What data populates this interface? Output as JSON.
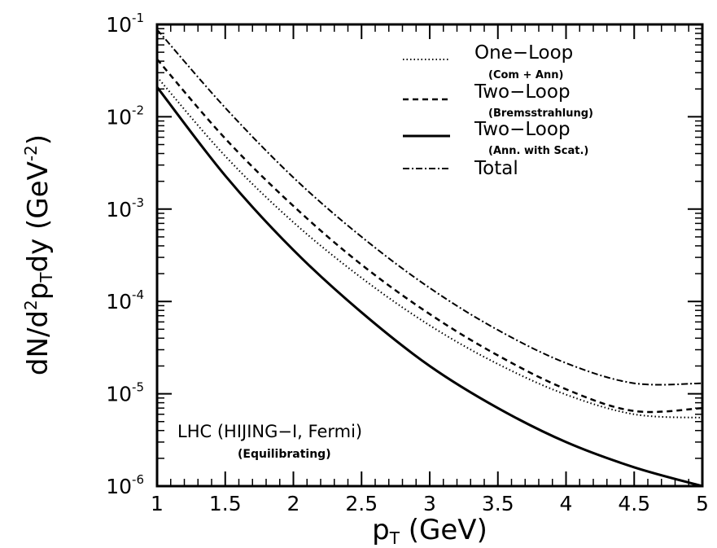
{
  "chart_data": {
    "type": "line",
    "title": "",
    "xlabel": "p_T (GeV)",
    "xlabel_base": "p",
    "xlabel_sub": "T",
    "xlabel_unit": " (GeV)",
    "ylabel": "dN/d²p_T dy (GeV⁻²)",
    "ylabel_parts": {
      "a": "dN/d",
      "b": "2",
      "c": "p",
      "d": "T",
      "e": "dy (GeV",
      "f": "-2",
      "g": ")"
    },
    "x_scale": "linear",
    "y_scale": "log",
    "xlim": [
      1,
      5
    ],
    "ylim": [
      1e-06,
      0.1
    ],
    "x_ticks": [
      "1",
      "1.5",
      "2",
      "2.5",
      "3",
      "3.5",
      "4",
      "4.5",
      "5"
    ],
    "y_ticks": [
      {
        "base": "10",
        "exp": "-6"
      },
      {
        "base": "10",
        "exp": "-5"
      },
      {
        "base": "10",
        "exp": "-4"
      },
      {
        "base": "10",
        "exp": "-3"
      },
      {
        "base": "10",
        "exp": "-2"
      },
      {
        "base": "10",
        "exp": "-1"
      }
    ],
    "grid": false,
    "legend_position": "top-right",
    "series": [
      {
        "name": "One−Loop",
        "note": "(Com + Ann)",
        "line_style": "dotted",
        "x": [
          1,
          1.5,
          2,
          2.5,
          3,
          3.5,
          4,
          4.5,
          5
        ],
        "y": [
          0.027,
          0.00375,
          0.00072,
          0.00018,
          5.5e-05,
          2.1e-05,
          9.8e-06,
          6e-06,
          5.5e-06
        ]
      },
      {
        "name": "Two−Loop",
        "note": "(Bremsstrahlung)",
        "line_style": "dashed",
        "x": [
          1,
          1.5,
          2,
          2.5,
          3,
          3.5,
          4,
          4.5,
          5
        ],
        "y": [
          0.042,
          0.0058,
          0.00108,
          0.00025,
          7.3e-05,
          2.6e-05,
          1.12e-05,
          6.5e-06,
          7e-06
        ]
      },
      {
        "name": "Two−Loop",
        "note": "(Ann. with Scat.)",
        "line_style": "solid",
        "x": [
          1,
          1.5,
          2,
          2.5,
          3,
          3.5,
          4,
          4.5,
          5
        ],
        "y": [
          0.021,
          0.0023,
          0.00036,
          7.6e-05,
          2e-05,
          7e-06,
          3e-06,
          1.6e-06,
          1e-06
        ]
      },
      {
        "name": "Total",
        "note": "",
        "line_style": "dashdot",
        "x": [
          1,
          1.5,
          2,
          2.5,
          3,
          3.5,
          4,
          4.5,
          5
        ],
        "y": [
          0.088,
          0.0125,
          0.0022,
          0.0005,
          0.00014,
          4.9e-05,
          2.15e-05,
          1.3e-05,
          1.3e-05
        ]
      }
    ],
    "annotations": [
      {
        "text": "LHC (HIJING−I, Fermi)"
      },
      {
        "text": "(Equilibrating)"
      }
    ]
  }
}
